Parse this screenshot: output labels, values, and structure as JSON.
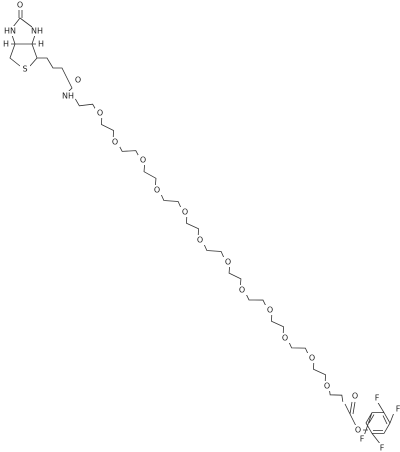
{
  "molecule": {
    "atoms": [
      "O",
      "HN",
      "NH",
      "H",
      "H",
      "S",
      "O",
      "NH",
      "O",
      "O",
      "O",
      "O",
      "O",
      "O",
      "O",
      "O",
      "O",
      "O",
      "O",
      "O",
      "O",
      "O",
      "F",
      "F",
      "F",
      "F"
    ]
  }
}
